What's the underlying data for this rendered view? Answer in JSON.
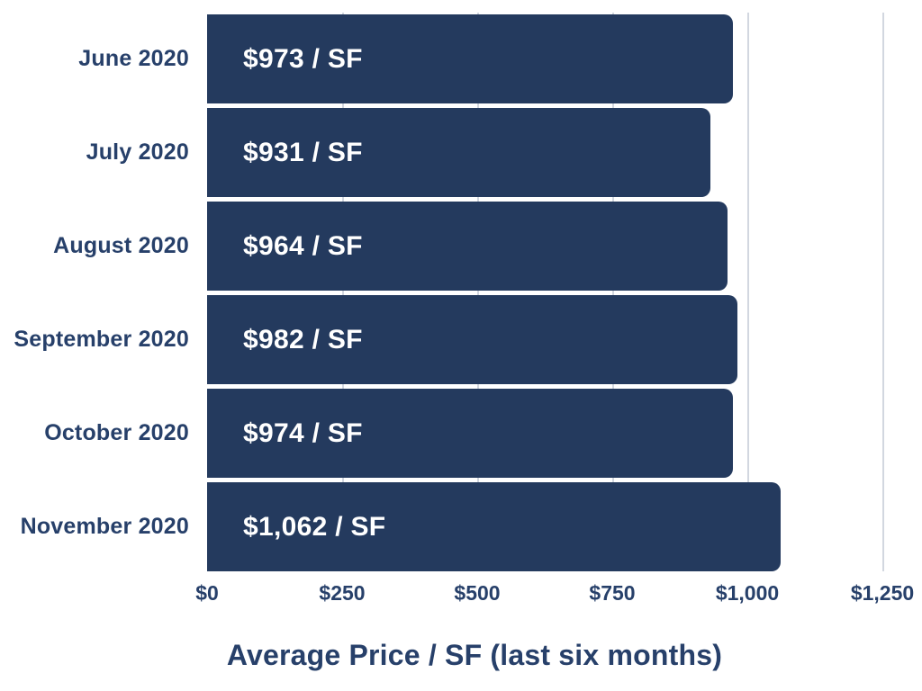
{
  "chart_data": {
    "type": "bar",
    "orientation": "horizontal",
    "title": "Average Price / SF (last six months)",
    "categories": [
      "June 2020",
      "July 2020",
      "August 2020",
      "September 2020",
      "October 2020",
      "November 2020"
    ],
    "values": [
      973,
      931,
      964,
      982,
      974,
      1062
    ],
    "bar_labels": [
      "$973 / SF",
      "$931 / SF",
      "$964 / SF",
      "$982 / SF",
      "$974 / SF",
      "$1,062 / SF"
    ],
    "x_ticks": [
      "$0",
      "$250",
      "$500",
      "$750",
      "$1,000",
      "$1,250"
    ],
    "x_tick_values": [
      0,
      250,
      500,
      750,
      1000,
      1250
    ],
    "xlim": [
      0,
      1250
    ],
    "grid": "vertical-gridlines-behind-bars",
    "legend": "none",
    "colors": {
      "bar": "#243A5E",
      "axis_text": "#27406A",
      "value_text": "#FFFFFF",
      "gridline": "#D2D7E0",
      "background": "#FFFFFF"
    }
  }
}
